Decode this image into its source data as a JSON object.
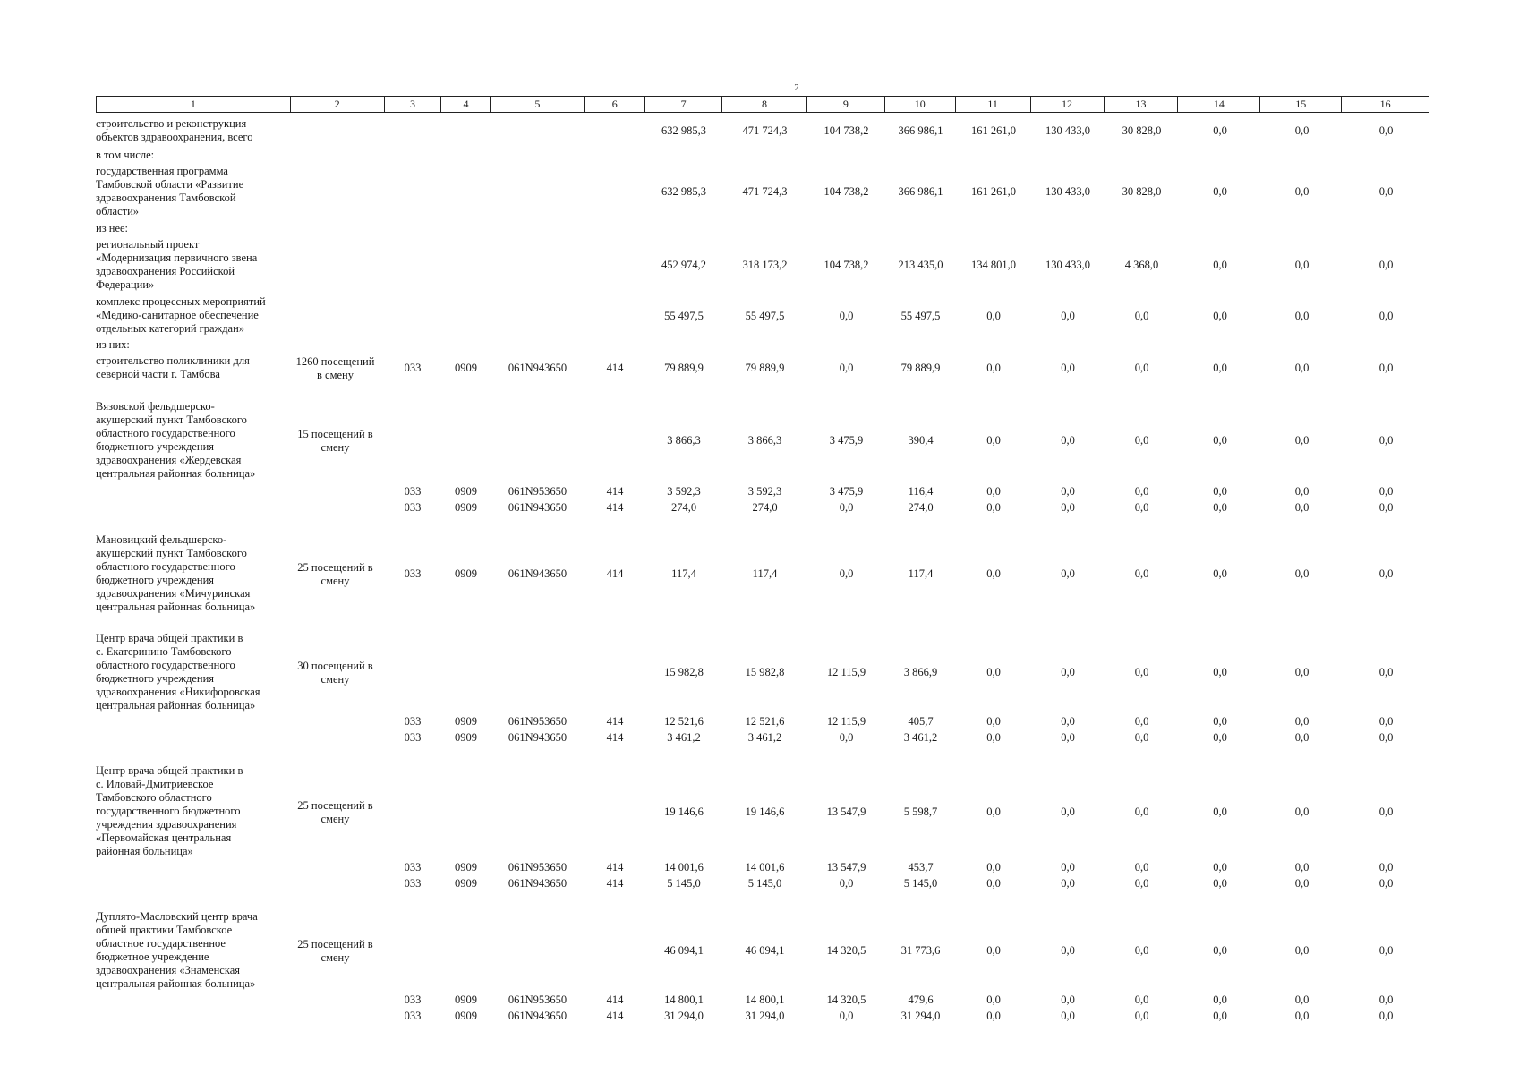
{
  "page_number": "2",
  "header": [
    "1",
    "2",
    "3",
    "4",
    "5",
    "6",
    "7",
    "8",
    "9",
    "10",
    "11",
    "12",
    "13",
    "14",
    "15",
    "16"
  ],
  "rows": [
    {
      "top": 131,
      "name": "строительство и реконструкция\nобъектов здравоохранения, всего",
      "v": [
        "632 985,3",
        "471 724,3",
        "104 738,2",
        "366 986,1",
        "161 261,0",
        "130 433,0",
        "30 828,0",
        "0,0",
        "0,0",
        "0,0"
      ]
    },
    {
      "top": 166,
      "name": "в том числе:"
    },
    {
      "top": 184,
      "name": "государственная программа\nТамбовской области «Развитие\nздравоохранения Тамбовской\nобласти»",
      "v": [
        "632 985,3",
        "471 724,3",
        "104 738,2",
        "366 986,1",
        "161 261,0",
        "130 433,0",
        "30 828,0",
        "0,0",
        "0,0",
        "0,0"
      ]
    },
    {
      "top": 248,
      "name": "из нее:"
    },
    {
      "top": 266,
      "name": "региональный проект\n«Модернизация первичного звена\nздравоохранения Российской\nФедерации»",
      "v": [
        "452 974,2",
        "318 173,2",
        "104 738,2",
        "213 435,0",
        "134 801,0",
        "130 433,0",
        "4 368,0",
        "0,0",
        "0,0",
        "0,0"
      ]
    },
    {
      "top": 330,
      "name": "комплекс процессных мероприятий\n«Медико-санитарное обеспечение\nотдельных категорий граждан»",
      "v": [
        "55 497,5",
        "55 497,5",
        "0,0",
        "55 497,5",
        "0,0",
        "0,0",
        "0,0",
        "0,0",
        "0,0",
        "0,0"
      ]
    },
    {
      "top": 378,
      "name": "из них:"
    },
    {
      "top": 396,
      "name": "строительство поликлиники для\nсеверной части г. Тамбова",
      "cap": "1260 посещений\nв смену",
      "c3": "033",
      "c4": "0909",
      "c5": "061N943650",
      "c6": "414",
      "v": [
        "79 889,9",
        "79 889,9",
        "0,0",
        "79 889,9",
        "0,0",
        "0,0",
        "0,0",
        "0,0",
        "0,0",
        "0,0"
      ]
    },
    {
      "top": 447,
      "name": "Вязовской фельдшерско-\nакушерский пункт Тамбовского\nобластного государственного\nбюджетного учреждения\nздравоохранения «Жердевская\nцентральная районная больница»",
      "cap": "15 посещений в\nсмену",
      "v": [
        "3 866,3",
        "3 866,3",
        "3 475,9",
        "390,4",
        "0,0",
        "0,0",
        "0,0",
        "0,0",
        "0,0",
        "0,0"
      ]
    },
    {
      "top": 541,
      "c3": "033",
      "c4": "0909",
      "c5": "061N953650",
      "c6": "414",
      "v": [
        "3 592,3",
        "3 592,3",
        "3 475,9",
        "116,4",
        "0,0",
        "0,0",
        "0,0",
        "0,0",
        "0,0",
        "0,0"
      ]
    },
    {
      "top": 559,
      "c3": "033",
      "c4": "0909",
      "c5": "061N943650",
      "c6": "414",
      "v": [
        "274,0",
        "274,0",
        "0,0",
        "274,0",
        "0,0",
        "0,0",
        "0,0",
        "0,0",
        "0,0",
        "0,0"
      ]
    },
    {
      "top": 596,
      "name": "Мановицкий фельдшерско-\nакушерский пункт Тамбовского\nобластного государственного\nбюджетного учреждения\nздравоохранения «Мичуринская\nцентральная районная больница»",
      "cap": "25 посещений в\nсмену",
      "c3": "033",
      "c4": "0909",
      "c5": "061N943650",
      "c6": "414",
      "v": [
        "117,4",
        "117,4",
        "0,0",
        "117,4",
        "0,0",
        "0,0",
        "0,0",
        "0,0",
        "0,0",
        "0,0"
      ]
    },
    {
      "top": 706,
      "name": "Центр врача общей практики в\nс. Екатеринино Тамбовского\nобластного государственного\nбюджетного учреждения\nздравоохранения «Никифоровская\nцентральная районная больница»",
      "cap": "30 посещений в\nсмену",
      "v": [
        "15 982,8",
        "15 982,8",
        "12 115,9",
        "3 866,9",
        "0,0",
        "0,0",
        "0,0",
        "0,0",
        "0,0",
        "0,0"
      ]
    },
    {
      "top": 798,
      "c3": "033",
      "c4": "0909",
      "c5": "061N953650",
      "c6": "414",
      "v": [
        "12 521,6",
        "12 521,6",
        "12 115,9",
        "405,7",
        "0,0",
        "0,0",
        "0,0",
        "0,0",
        "0,0",
        "0,0"
      ]
    },
    {
      "top": 816,
      "c3": "033",
      "c4": "0909",
      "c5": "061N943650",
      "c6": "414",
      "v": [
        "3 461,2",
        "3 461,2",
        "0,0",
        "3 461,2",
        "0,0",
        "0,0",
        "0,0",
        "0,0",
        "0,0",
        "0,0"
      ]
    },
    {
      "top": 854,
      "name": "Центр врача общей практики в\nс. Иловай-Дмитриевское\nТамбовского областного\nгосударственного бюджетного\nучреждения здравоохранения\n«Первомайская центральная\nрайонная больница»",
      "cap": "25 посещений в\nсмену",
      "v": [
        "19 146,6",
        "19 146,6",
        "13 547,9",
        "5 598,7",
        "0,0",
        "0,0",
        "0,0",
        "0,0",
        "0,0",
        "0,0"
      ]
    },
    {
      "top": 961,
      "c3": "033",
      "c4": "0909",
      "c5": "061N953650",
      "c6": "414",
      "v": [
        "14 001,6",
        "14 001,6",
        "13 547,9",
        "453,7",
        "0,0",
        "0,0",
        "0,0",
        "0,0",
        "0,0",
        "0,0"
      ]
    },
    {
      "top": 979,
      "c3": "033",
      "c4": "0909",
      "c5": "061N943650",
      "c6": "414",
      "v": [
        "5 145,0",
        "5 145,0",
        "0,0",
        "5 145,0",
        "0,0",
        "0,0",
        "0,0",
        "0,0",
        "0,0",
        "0,0"
      ]
    },
    {
      "top": 1017,
      "name": "Дуплято-Масловский центр врача\nобщей практики Тамбовское\nобластное государственное\nбюджетное учреждение\nздравоохранения «Знаменская\nцентральная районная больница»",
      "cap": "25 посещений в\nсмену",
      "v": [
        "46 094,1",
        "46 094,1",
        "14 320,5",
        "31 773,6",
        "0,0",
        "0,0",
        "0,0",
        "0,0",
        "0,0",
        "0,0"
      ]
    },
    {
      "top": 1109,
      "c3": "033",
      "c4": "0909",
      "c5": "061N953650",
      "c6": "414",
      "v": [
        "14 800,1",
        "14 800,1",
        "14 320,5",
        "479,6",
        "0,0",
        "0,0",
        "0,0",
        "0,0",
        "0,0",
        "0,0"
      ]
    },
    {
      "top": 1127,
      "c3": "033",
      "c4": "0909",
      "c5": "061N943650",
      "c6": "414",
      "v": [
        "31 294,0",
        "31 294,0",
        "0,0",
        "31 294,0",
        "0,0",
        "0,0",
        "0,0",
        "0,0",
        "0,0",
        "0,0"
      ]
    }
  ]
}
